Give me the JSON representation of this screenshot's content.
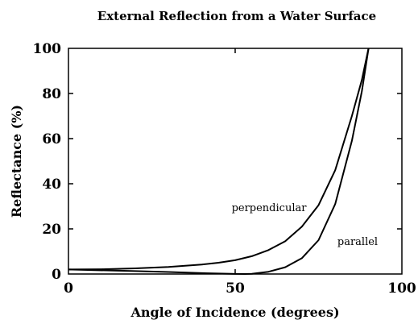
{
  "chart_data": {
    "type": "line",
    "title": "External Reflection from a Water Surface",
    "xlabel": "Angle of Incidence (degrees)",
    "ylabel": "Reflectance (%)",
    "xlim": [
      0,
      100
    ],
    "ylim": [
      0,
      100
    ],
    "xticks": [
      "0",
      "50",
      "100"
    ],
    "yticks": [
      "0",
      "20",
      "40",
      "60",
      "80",
      "100"
    ],
    "grid": false,
    "legend": "none",
    "line_color": "#000000",
    "annotations": [
      "perpendicular",
      "parallel"
    ],
    "series": [
      {
        "name": "perpendicular",
        "x": [
          0,
          10,
          20,
          30,
          40,
          45,
          50,
          55,
          60,
          65,
          70,
          75,
          80,
          85,
          88,
          90
        ],
        "values": [
          2.0,
          2.1,
          2.5,
          3.1,
          4.2,
          5.0,
          6.1,
          7.9,
          10.6,
          14.5,
          21.0,
          30.5,
          46.0,
          70.0,
          86.0,
          100.0
        ]
      },
      {
        "name": "parallel",
        "x": [
          0,
          20,
          30,
          40,
          50,
          53,
          55,
          60,
          65,
          70,
          75,
          80,
          85,
          88,
          90
        ],
        "values": [
          2.0,
          1.3,
          0.9,
          0.4,
          0.05,
          0.0,
          0.1,
          1.0,
          3.0,
          7.0,
          15.0,
          31.0,
          59.0,
          81.0,
          100.0
        ]
      }
    ]
  }
}
